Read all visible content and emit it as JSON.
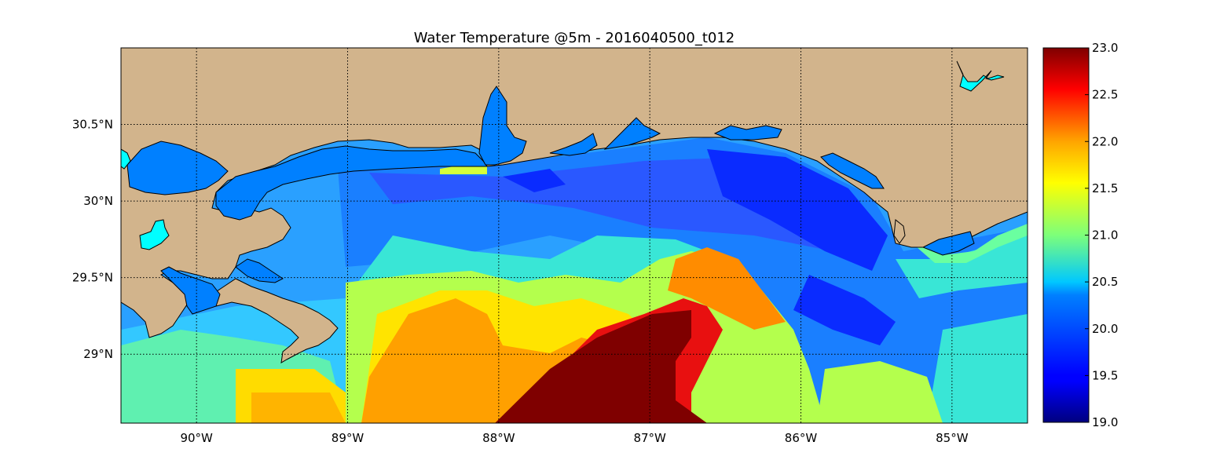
{
  "title": "Water Temperature @5m - 2016040500_t012",
  "map": {
    "lon_range": [
      -90.5,
      -84.5
    ],
    "lat_range": [
      28.55,
      31.0
    ],
    "lon_ticks": [
      {
        "value": -90,
        "label": "90°W"
      },
      {
        "value": -89,
        "label": "89°W"
      },
      {
        "value": -88,
        "label": "88°W"
      },
      {
        "value": -87,
        "label": "87°W"
      },
      {
        "value": -86,
        "label": "86°W"
      },
      {
        "value": -85,
        "label": "85°W"
      }
    ],
    "lat_ticks": [
      {
        "value": 30.5,
        "label": "30.5°N"
      },
      {
        "value": 30.0,
        "label": "30°N"
      },
      {
        "value": 29.5,
        "label": "29.5°N"
      },
      {
        "value": 29.0,
        "label": "29°N"
      }
    ],
    "grid": true,
    "land_color": "#d2b48c",
    "inland_water_color": "#0080ff",
    "lake_color": "#00ffff"
  },
  "colorbar": {
    "range": [
      19.0,
      23.0
    ],
    "ticks": [
      "19.0",
      "19.5",
      "20.0",
      "20.5",
      "21.0",
      "21.5",
      "22.0",
      "22.5",
      "23.0"
    ],
    "colormap": "jet"
  }
}
